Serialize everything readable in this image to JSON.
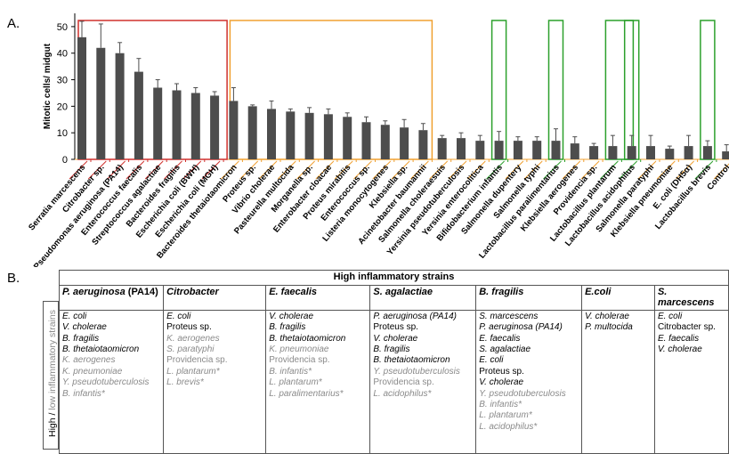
{
  "panel_a_label": "A.",
  "panel_b_label": "B.",
  "chart_data": {
    "type": "bar",
    "ylabel": "Mitotic cells/ midgut",
    "ylim": [
      0,
      55
    ],
    "yticks": [
      0,
      10,
      20,
      30,
      40,
      50
    ],
    "categories": [
      "Serratia marcescens",
      "Citrobacter sp.",
      "Pseudomonas aeruginosa (PA14)",
      "Enterococcus faecalis",
      "Streptococcus agalactiae",
      "Bacteroides fragilis",
      "Escherichia coli (BWH)",
      "Escherichia coli (MGH)",
      "Bacteroides thetaiotaomicron",
      "Proteus sp.",
      "Vibrio cholerae",
      "Pasteurella multocida",
      "Morganella sp.",
      "Enterobacter cloacae",
      "Proteus mirabilis",
      "Enterococcus sp.",
      "Listeria monocytogenes",
      "Klebsiella sp.",
      "Acinetobacter baumannii",
      "Salmonella choleraesuis",
      "Yersinia pseudotuberculosis",
      "Yersinia enterocolitica",
      "Bifidobacterium infantis",
      "Salmonella dupentery",
      "Salmonella typhi",
      "Lactobacillus paralimentarius",
      "Klebsiella aerogenes",
      "Providencia sp.",
      "Lactobacillus plantarum",
      "Lactobacillus acidophilus",
      "Salmonella paratyphi",
      "Klebsiella pneumoniae",
      "E. coli (DH5α)",
      "Lactobacillus brevis",
      "Control"
    ],
    "values": [
      46,
      42,
      40,
      33,
      27,
      26,
      25,
      24,
      22,
      20,
      19,
      18,
      17.5,
      17,
      16,
      14,
      13,
      12,
      11,
      8,
      8,
      7,
      7,
      7,
      7,
      7,
      6,
      5,
      5,
      5,
      5,
      4,
      5,
      5,
      3
    ],
    "errors": [
      6,
      9,
      4,
      5,
      3,
      2.5,
      2,
      1.5,
      5,
      0.5,
      3,
      1,
      2,
      2,
      1.5,
      2,
      1.5,
      3,
      2.5,
      1,
      2,
      2,
      3.5,
      1.5,
      1.5,
      4.5,
      2.5,
      1,
      4,
      4,
      4,
      1,
      4,
      2,
      2.5
    ],
    "bar_color": "#4d4d4d",
    "groups": [
      {
        "name": "high",
        "color": "#d0312d",
        "from": 0,
        "to": 7
      },
      {
        "name": "intermediate",
        "color": "#f0a030",
        "from": 8,
        "to": 18
      },
      {
        "name": "probiotic",
        "color": "#2ca02c",
        "members": [
          22,
          25,
          28,
          29,
          33
        ]
      }
    ],
    "grid": false
  },
  "table": {
    "header": "High inflammatory strains",
    "side_label_high": "High / ",
    "side_label_low": "low inflammatory strains",
    "columns": [
      {
        "title": "P. aeruginosa",
        "title_suffix": " (PA14)",
        "items": [
          {
            "t": "E. coli",
            "it": true,
            "low": false
          },
          {
            "t": "V. cholerae",
            "it": true,
            "low": false
          },
          {
            "t": "B. fragilis",
            "it": true,
            "low": false
          },
          {
            "t": "B. thetaiotaomicron",
            "it": true,
            "low": false
          },
          {
            "t": "K. aerogenes",
            "it": true,
            "low": true
          },
          {
            "t": "K. pneumoniae",
            "it": true,
            "low": true
          },
          {
            "t": "Y. pseudotuberculosis",
            "it": true,
            "low": true
          },
          {
            "t": "B. infantis*",
            "it": true,
            "low": true
          }
        ]
      },
      {
        "title": "Citrobacter",
        "title_suffix": "",
        "items": [
          {
            "t": "E. coli",
            "it": true,
            "low": false
          },
          {
            "t": "Proteus sp.",
            "it": false,
            "low": false
          },
          {
            "t": "K. aerogenes",
            "it": true,
            "low": true
          },
          {
            "t": "S. paratyphi",
            "it": true,
            "low": true
          },
          {
            "t": "Providencia sp.",
            "it": false,
            "low": true
          },
          {
            "t": "L. plantarum*",
            "it": true,
            "low": true
          },
          {
            "t": "L. brevis*",
            "it": true,
            "low": true
          }
        ]
      },
      {
        "title": "E. faecalis",
        "title_suffix": "",
        "items": [
          {
            "t": "V. cholerae",
            "it": true,
            "low": false
          },
          {
            "t": "B. fragilis",
            "it": true,
            "low": false
          },
          {
            "t": "B. thetaiotaomicron",
            "it": true,
            "low": false
          },
          {
            "t": "K. pneumoniae",
            "it": true,
            "low": true
          },
          {
            "t": "Providencia sp.",
            "it": false,
            "low": true
          },
          {
            "t": "B. infantis*",
            "it": true,
            "low": true
          },
          {
            "t": "L. plantarum*",
            "it": true,
            "low": true
          },
          {
            "t": "L. paralimentarius*",
            "it": true,
            "low": true
          }
        ]
      },
      {
        "title": "S. agalactiae",
        "title_suffix": "",
        "items": [
          {
            "t": "P. aeruginosa (PA14)",
            "it": true,
            "low": false
          },
          {
            "t": "Proteus sp.",
            "it": false,
            "low": false
          },
          {
            "t": "V. cholerae",
            "it": true,
            "low": false
          },
          {
            "t": "B. fragilis",
            "it": true,
            "low": false
          },
          {
            "t": "B. thetaiotaomicron",
            "it": true,
            "low": false
          },
          {
            "t": "Y. pseudotuberculosis",
            "it": true,
            "low": true
          },
          {
            "t": "Providencia sp.",
            "it": false,
            "low": true
          },
          {
            "t": "L. acidophilus*",
            "it": true,
            "low": true
          }
        ]
      },
      {
        "title": "B. fragilis",
        "title_suffix": "",
        "items": [
          {
            "t": "S. marcescens",
            "it": true,
            "low": false
          },
          {
            "t": "P. aeruginosa (PA14)",
            "it": true,
            "low": false
          },
          {
            "t": "E. faecalis",
            "it": true,
            "low": false
          },
          {
            "t": "S. agalactiae",
            "it": true,
            "low": false
          },
          {
            "t": "E. coli",
            "it": true,
            "low": false
          },
          {
            "t": "Proteus sp.",
            "it": false,
            "low": false
          },
          {
            "t": "V. cholerae",
            "it": true,
            "low": false
          },
          {
            "t": "Y. pseudotuberculosis",
            "it": true,
            "low": true
          },
          {
            "t": "B. infantis*",
            "it": true,
            "low": true
          },
          {
            "t": "L. plantarum*",
            "it": true,
            "low": true
          },
          {
            "t": "L. acidophilus*",
            "it": true,
            "low": true
          }
        ]
      },
      {
        "title": "E.coli",
        "title_suffix": "",
        "items": [
          {
            "t": "V. cholerae",
            "it": true,
            "low": false
          },
          {
            "t": "P. multocida",
            "it": true,
            "low": false
          }
        ]
      },
      {
        "title": "S. marcescens",
        "title_suffix": "",
        "items": [
          {
            "t": "E. coli",
            "it": true,
            "low": false
          },
          {
            "t": "Citrobacter sp.",
            "it": false,
            "low": false
          },
          {
            "t": "E. faecalis",
            "it": true,
            "low": false
          },
          {
            "t": "V. cholerae",
            "it": true,
            "low": false
          }
        ]
      }
    ]
  }
}
